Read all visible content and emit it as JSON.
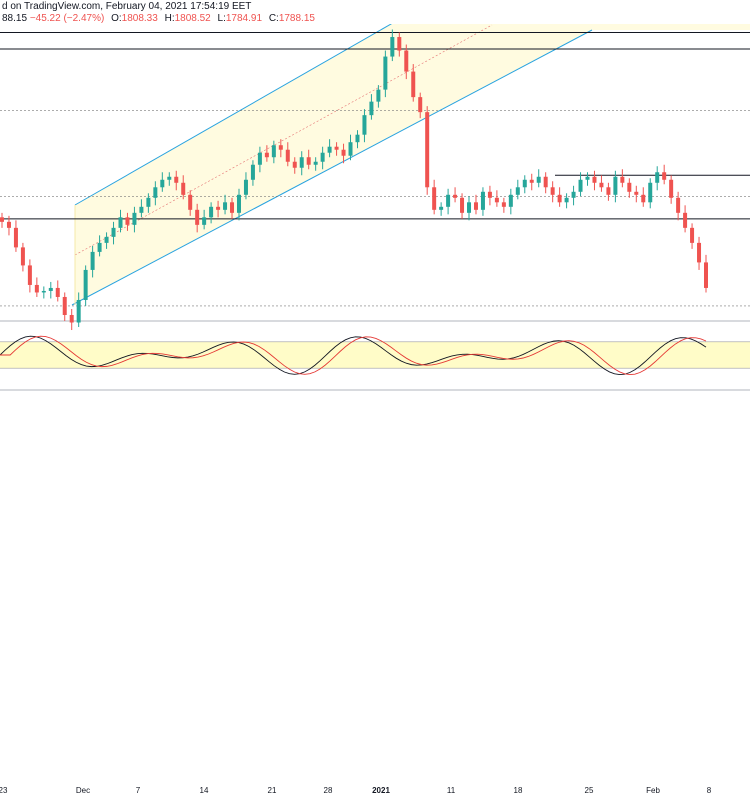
{
  "header": {
    "line1": "d on TradingView.com, February 04, 2021 17:54:19 EET",
    "last": "88.15",
    "change": "−45.22 (−2.47%)",
    "ohlc": [
      {
        "k": "O:",
        "v": "1808.33"
      },
      {
        "k": "H:",
        "v": "1808.52"
      },
      {
        "k": "L:",
        "v": "1784.91"
      },
      {
        "k": "C:",
        "v": "1788.15"
      }
    ]
  },
  "xaxis": {
    "labels": [
      "23",
      "Dec",
      "7",
      "14",
      "21",
      "28",
      "2021",
      "11",
      "18",
      "25",
      "Feb",
      "8"
    ]
  },
  "colors": {
    "up": "#26a69a",
    "down": "#ef5350",
    "channel": "#29a3e0",
    "channel_fill": "#fffbe0",
    "hline": "#131722",
    "dotted": "#7a7a7a",
    "stoch_k": "#131722",
    "stoch_d": "#e53935",
    "stoch_band": "#fffcc8"
  },
  "chart_data": {
    "type": "candlestick",
    "series": [
      {
        "name": "price",
        "close": [
          1832,
          1828,
          1815,
          1803,
          1790,
          1785,
          1786,
          1788,
          1782,
          1770,
          1765,
          1780,
          1800,
          1812,
          1818,
          1822,
          1828,
          1835,
          1830,
          1838,
          1842,
          1848,
          1855,
          1860,
          1862,
          1858,
          1850,
          1840,
          1830,
          1835,
          1842,
          1840,
          1845,
          1838,
          1850,
          1860,
          1870,
          1878,
          1875,
          1883,
          1880,
          1872,
          1868,
          1875,
          1870,
          1872,
          1878,
          1882,
          1880,
          1876,
          1885,
          1890,
          1903,
          1912,
          1920,
          1942,
          1955,
          1946,
          1932,
          1915,
          1905,
          1855,
          1840,
          1842,
          1850,
          1848,
          1838,
          1845,
          1840,
          1852,
          1848,
          1845,
          1842,
          1850,
          1855,
          1860,
          1858,
          1862,
          1855,
          1850,
          1845,
          1848,
          1852,
          1860,
          1862,
          1858,
          1855,
          1850,
          1862,
          1858,
          1852,
          1850,
          1845,
          1858,
          1865,
          1860,
          1848,
          1838,
          1828,
          1818,
          1805,
          1788
        ]
      }
    ],
    "annotations": {
      "horizontal_lines": [
        1958,
        1947,
        1863,
        1834
      ],
      "dotted_lines": [
        1906,
        1849,
        1776
      ],
      "stochastic_band": [
        20,
        80
      ]
    }
  }
}
